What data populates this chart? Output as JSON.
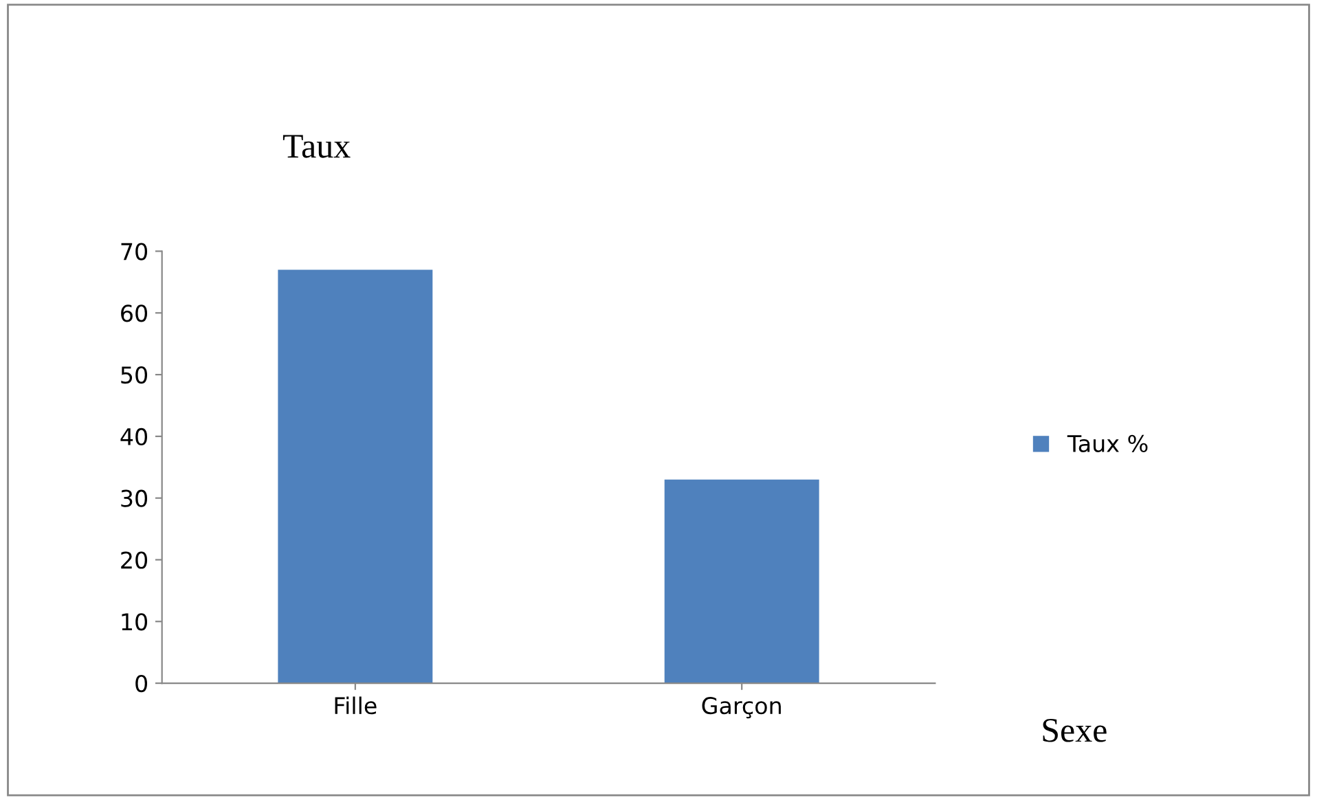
{
  "chart_data": {
    "type": "bar",
    "ylabel": "Taux",
    "xlabel": "Sexe",
    "categories": [
      "Fille",
      "Garçon"
    ],
    "series": [
      {
        "name": "Taux %",
        "color": "#4f81bd",
        "values": [
          67,
          33
        ]
      }
    ],
    "ylim": [
      0,
      70
    ],
    "yticks": [
      0,
      10,
      20,
      30,
      40,
      50,
      60,
      70
    ],
    "grid": false,
    "legend": "right"
  }
}
